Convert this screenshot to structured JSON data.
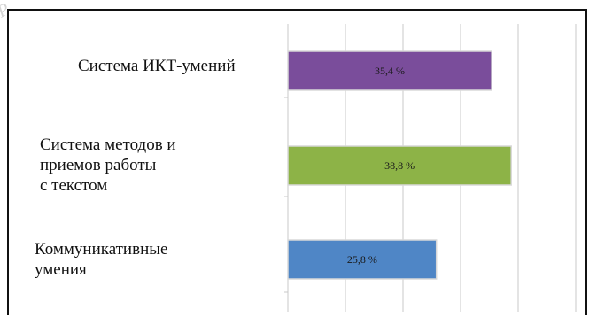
{
  "chart_data": {
    "type": "bar",
    "orientation": "horizontal",
    "categories": [
      "Система ИКТ-умений",
      "Система методов и\nприемов работы\nс текстом",
      "Коммуникативные\nумения"
    ],
    "values": [
      35.4,
      38.8,
      25.8
    ],
    "data_labels": [
      "35,4 %",
      "38,8 %",
      "25,8 %"
    ],
    "colors": [
      "#7a4d9b",
      "#8db347",
      "#4f86c6"
    ],
    "xlim": [
      0,
      50
    ],
    "grid": true,
    "legend": "none",
    "title": "",
    "xlabel": "",
    "ylabel": ""
  }
}
